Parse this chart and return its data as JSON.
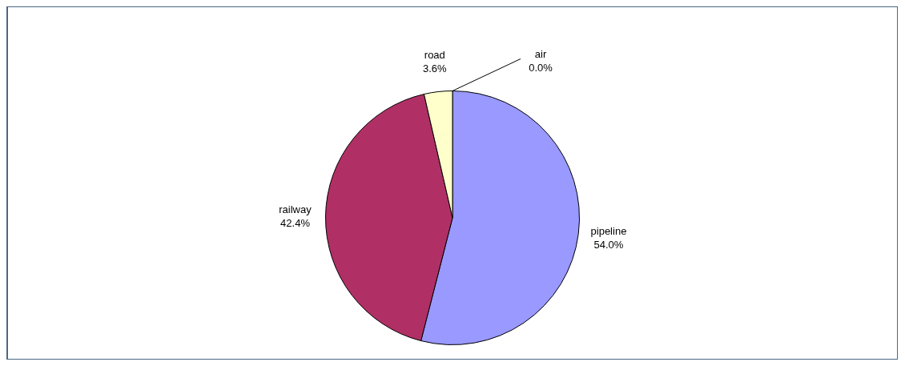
{
  "chart_data": {
    "type": "pie",
    "categories": [
      "pipeline",
      "railway",
      "road",
      "air"
    ],
    "values": [
      54.0,
      42.4,
      3.6,
      0.0
    ],
    "value_labels": [
      "54.0%",
      "42.4%",
      "3.6%",
      "0.0%"
    ],
    "colors": [
      "#9999ff",
      "#b03066",
      "#ffffcc",
      "#ccffff"
    ],
    "legend": false
  }
}
